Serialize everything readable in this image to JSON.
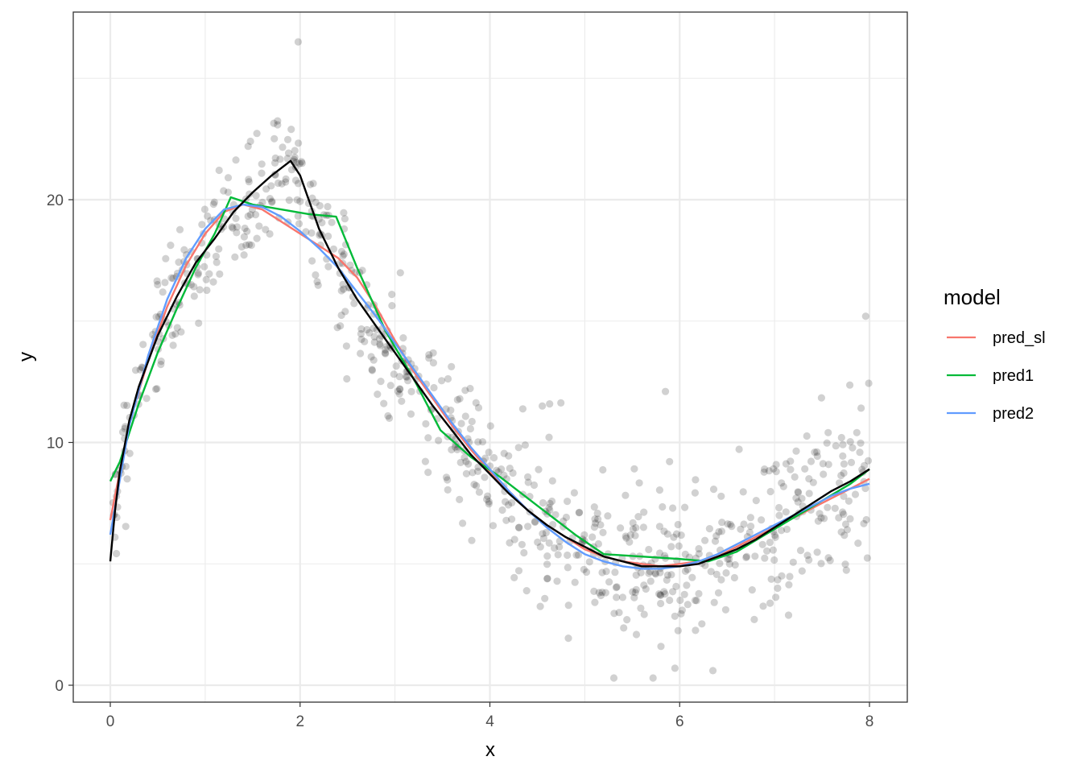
{
  "chart_data": {
    "type": "scatter",
    "title": "",
    "xlabel": "x",
    "ylabel": "y",
    "xlim": [
      -0.2,
      8.2
    ],
    "ylim": [
      -0.7,
      27.7
    ],
    "x_ticks": [
      0,
      2,
      4,
      6,
      8
    ],
    "x_tick_labels": [
      "0",
      "2",
      "4",
      "6",
      "8"
    ],
    "y_ticks": [
      0,
      10,
      20
    ],
    "y_tick_labels": [
      "0",
      "10",
      "20"
    ],
    "grid": true,
    "legend": {
      "title": "model",
      "position": "right",
      "entries": [
        {
          "label": "pred_sl",
          "color": "#F8766D"
        },
        {
          "label": "pred1",
          "color": "#00BA38"
        },
        {
          "label": "pred2",
          "color": "#619CFF"
        }
      ]
    },
    "points": {
      "color": "#000000",
      "opacity": 0.18,
      "n_approx": 800,
      "description": "noisy observations around the true curve"
    },
    "series": [
      {
        "name": "pred_sl",
        "color": "#F8766D",
        "x": [
          0.0,
          0.2,
          0.4,
          0.6,
          0.8,
          1.0,
          1.2,
          1.4,
          1.6,
          1.8,
          2.0,
          2.2,
          2.4,
          2.6,
          2.8,
          3.0,
          3.2,
          3.4,
          3.6,
          3.8,
          4.0,
          4.2,
          4.4,
          4.6,
          4.8,
          5.0,
          5.2,
          5.4,
          5.6,
          5.8,
          6.0,
          6.2,
          6.4,
          6.6,
          6.8,
          7.0,
          7.2,
          7.4,
          7.6,
          7.8,
          8.0
        ],
        "y": [
          6.8,
          10.8,
          13.4,
          15.6,
          17.3,
          18.6,
          19.5,
          19.8,
          19.6,
          19.1,
          18.6,
          18.1,
          17.6,
          16.8,
          15.6,
          14.2,
          12.9,
          11.8,
          10.7,
          9.7,
          8.8,
          8.0,
          7.2,
          6.6,
          6.1,
          5.6,
          5.3,
          5.1,
          5.0,
          4.9,
          5.0,
          5.1,
          5.3,
          5.7,
          6.1,
          6.5,
          6.9,
          7.3,
          7.7,
          8.1,
          8.5
        ]
      },
      {
        "name": "pred1",
        "color": "#00BA38",
        "x": [
          0.0,
          0.1,
          0.3,
          0.5,
          0.7,
          0.9,
          1.1,
          1.27,
          1.5,
          1.8,
          2.1,
          2.38,
          2.6,
          2.9,
          3.2,
          3.48,
          3.8,
          4.1,
          4.5,
          4.9,
          5.2,
          5.6,
          6.0,
          6.3,
          6.6,
          6.9,
          7.2,
          7.5,
          7.8,
          8.0
        ],
        "y": [
          8.4,
          9.2,
          11.6,
          13.7,
          15.5,
          17.2,
          18.6,
          20.1,
          19.8,
          19.6,
          19.4,
          19.3,
          17.2,
          14.6,
          12.6,
          10.5,
          9.4,
          8.6,
          7.4,
          6.2,
          5.4,
          5.3,
          5.2,
          5.1,
          5.5,
          6.2,
          6.9,
          7.6,
          8.3,
          8.9
        ]
      },
      {
        "name": "pred2",
        "color": "#619CFF",
        "x": [
          0.0,
          0.2,
          0.4,
          0.6,
          0.8,
          1.0,
          1.2,
          1.4,
          1.6,
          1.8,
          2.0,
          2.2,
          2.4,
          2.6,
          2.8,
          3.0,
          3.2,
          3.4,
          3.6,
          3.8,
          4.0,
          4.2,
          4.4,
          4.6,
          4.8,
          5.0,
          5.2,
          5.4,
          5.6,
          5.8,
          6.0,
          6.2,
          6.4,
          6.6,
          6.8,
          7.0,
          7.2,
          7.4,
          7.6,
          7.8,
          8.0
        ],
        "y": [
          6.2,
          10.7,
          13.6,
          15.9,
          17.6,
          18.8,
          19.6,
          19.8,
          19.7,
          19.3,
          18.7,
          18.0,
          17.2,
          16.2,
          15.2,
          14.1,
          13.0,
          11.9,
          10.8,
          9.8,
          8.9,
          8.0,
          7.2,
          6.5,
          5.9,
          5.4,
          5.1,
          4.9,
          4.8,
          4.8,
          4.9,
          5.1,
          5.4,
          5.8,
          6.2,
          6.6,
          7.0,
          7.4,
          7.8,
          8.1,
          8.3
        ]
      },
      {
        "name": "",
        "color": "#000000",
        "x": [
          0.0,
          0.05,
          0.1,
          0.2,
          0.3,
          0.5,
          0.7,
          0.9,
          1.1,
          1.3,
          1.5,
          1.7,
          1.9,
          2.0,
          2.2,
          2.4,
          2.6,
          2.8,
          3.0,
          3.2,
          3.4,
          3.6,
          3.8,
          4.0,
          4.2,
          4.4,
          4.6,
          4.8,
          5.0,
          5.2,
          5.4,
          5.6,
          5.8,
          6.0,
          6.2,
          6.4,
          6.6,
          6.8,
          7.0,
          7.2,
          7.4,
          7.6,
          7.8,
          8.0
        ],
        "y": [
          5.1,
          7.2,
          8.8,
          10.9,
          12.3,
          14.4,
          16.0,
          17.4,
          18.4,
          19.5,
          20.3,
          21.0,
          21.6,
          21.0,
          18.8,
          17.2,
          15.9,
          14.8,
          13.7,
          12.6,
          11.5,
          10.5,
          9.5,
          8.7,
          7.9,
          7.2,
          6.6,
          6.1,
          5.7,
          5.3,
          5.1,
          4.9,
          4.9,
          4.9,
          5.0,
          5.3,
          5.6,
          6.0,
          6.5,
          7.0,
          7.5,
          8.0,
          8.4,
          8.9
        ]
      }
    ]
  }
}
